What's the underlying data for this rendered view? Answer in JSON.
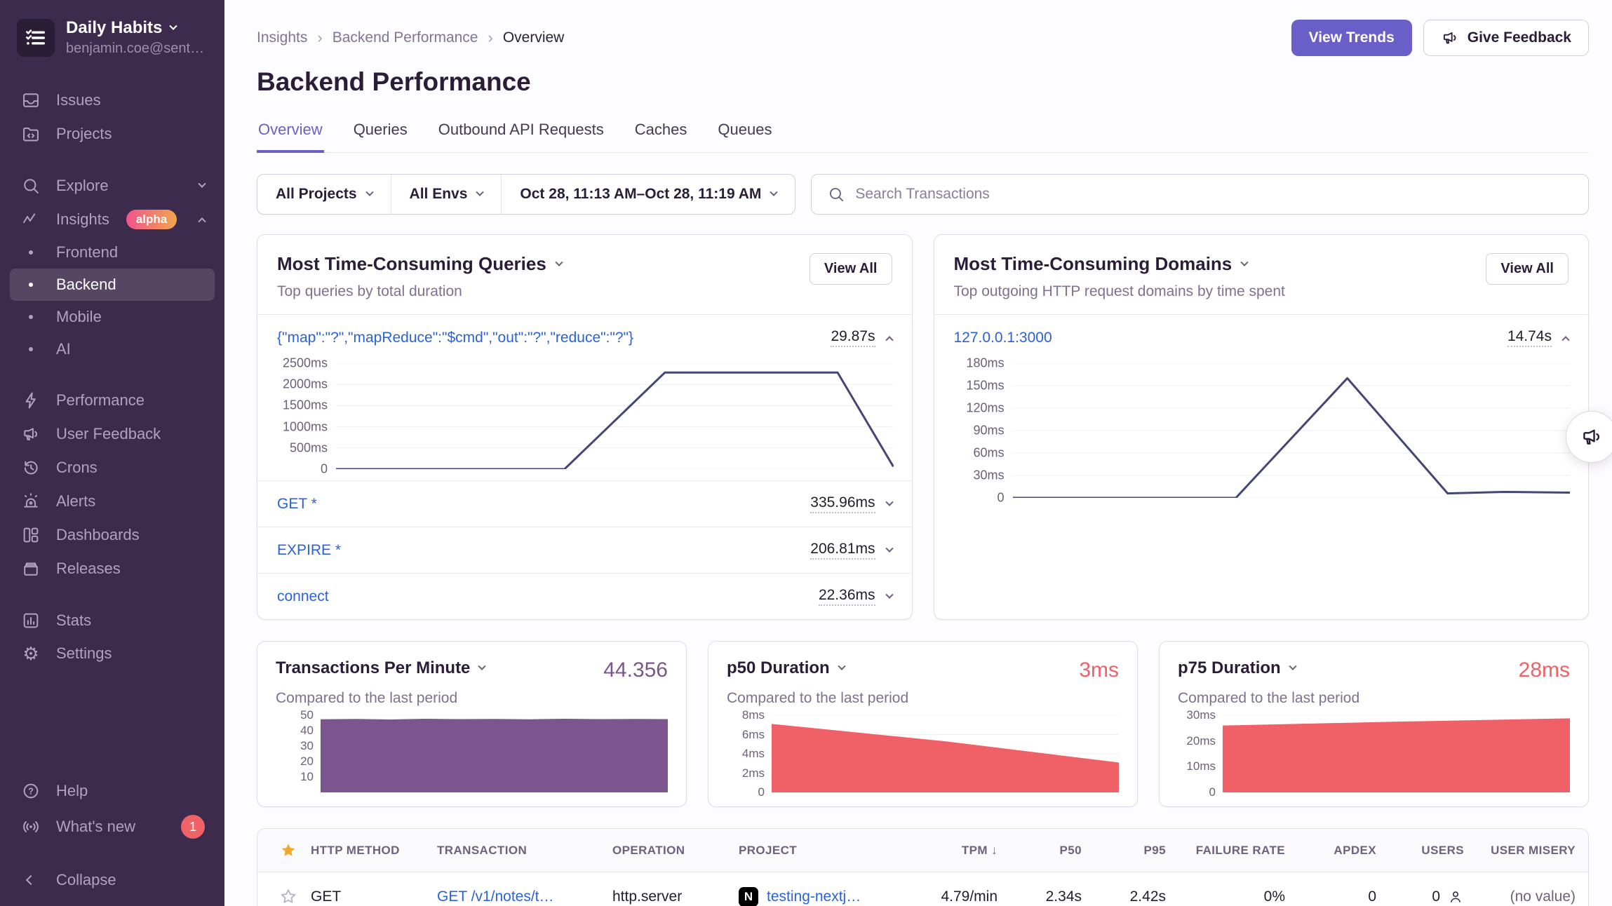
{
  "sidebar": {
    "org": {
      "name": "Daily Habits",
      "email": "benjamin.coe@sent…"
    },
    "items": [
      {
        "label": "Issues"
      },
      {
        "label": "Projects"
      },
      {
        "label": "Explore"
      },
      {
        "label": "Insights",
        "badge": "alpha"
      },
      {
        "label": "Frontend"
      },
      {
        "label": "Backend"
      },
      {
        "label": "Mobile"
      },
      {
        "label": "AI"
      },
      {
        "label": "Performance"
      },
      {
        "label": "User Feedback"
      },
      {
        "label": "Crons"
      },
      {
        "label": "Alerts"
      },
      {
        "label": "Dashboards"
      },
      {
        "label": "Releases"
      },
      {
        "label": "Stats"
      },
      {
        "label": "Settings"
      }
    ],
    "footer": {
      "help": "Help",
      "whats_new": "What's new",
      "whats_new_count": "1",
      "collapse": "Collapse"
    }
  },
  "header": {
    "breadcrumbs": [
      "Insights",
      "Backend Performance",
      "Overview"
    ],
    "title": "Backend Performance",
    "view_trends_label": "View Trends",
    "give_feedback_label": "Give Feedback"
  },
  "tabs": [
    {
      "label": "Overview"
    },
    {
      "label": "Queries"
    },
    {
      "label": "Outbound API Requests"
    },
    {
      "label": "Caches"
    },
    {
      "label": "Queues"
    }
  ],
  "filters": {
    "projects": "All Projects",
    "envs": "All Envs",
    "date_range": "Oct 28, 11:13 AM–Oct 28, 11:19 AM",
    "search_placeholder": "Search Transactions"
  },
  "queries_panel": {
    "title": "Most Time-Consuming Queries",
    "subtitle": "Top queries by total duration",
    "view_all": "View All",
    "rows": [
      {
        "label": "{\"map\":\"?\",\"mapReduce\":\"$cmd\",\"out\":\"?\",\"reduce\":\"?\"}",
        "value": "29.87s"
      },
      {
        "label": "GET *",
        "value": "335.96ms"
      },
      {
        "label": "EXPIRE *",
        "value": "206.81ms"
      },
      {
        "label": "connect",
        "value": "22.36ms"
      }
    ]
  },
  "domains_panel": {
    "title": "Most Time-Consuming Domains",
    "subtitle": "Top outgoing HTTP request domains by time spent",
    "view_all": "View All",
    "rows": [
      {
        "label": "127.0.0.1:3000",
        "value": "14.74s"
      }
    ]
  },
  "metric_cards": [
    {
      "title": "Transactions Per Minute",
      "value": "44.356",
      "subtitle": "Compared to the last period",
      "value_color": "#7c548e"
    },
    {
      "title": "p50 Duration",
      "value": "3ms",
      "subtitle": "Compared to the last period",
      "value_color": "#ef6067"
    },
    {
      "title": "p75 Duration",
      "value": "28ms",
      "subtitle": "Compared to the last period",
      "value_color": "#ef6067"
    }
  ],
  "table": {
    "columns": [
      {
        "label": "HTTP METHOD"
      },
      {
        "label": "TRANSACTION"
      },
      {
        "label": "OPERATION"
      },
      {
        "label": "PROJECT"
      },
      {
        "label": "TPM",
        "sort": "desc"
      },
      {
        "label": "P50"
      },
      {
        "label": "P95"
      },
      {
        "label": "FAILURE RATE"
      },
      {
        "label": "APDEX"
      },
      {
        "label": "USERS"
      },
      {
        "label": "USER MISERY"
      }
    ],
    "row": {
      "method": "GET",
      "transaction": "GET /v1/notes/t…",
      "operation": "http.server",
      "project": "testing-nextj…",
      "project_logo": "N",
      "tpm": "4.79/min",
      "p50": "2.34s",
      "p95": "2.42s",
      "failure_rate": "0%",
      "apdex": "0",
      "users": "0",
      "user_misery": "(no value)"
    }
  },
  "colors": {
    "accent_purple": "#6a5fc8",
    "chart_line": "#444674",
    "tpm_fill": "#7c548e",
    "duration_fill": "#ef6067",
    "alpha_badge_gradient": [
      "#f1538c",
      "#f2a64b"
    ],
    "notification_red": "#ef6266",
    "link_blue": "#2b62d9"
  },
  "chart_data": [
    {
      "id": "queries-selected-duration",
      "type": "line",
      "title": "Most Time-Consuming Queries — selected query duration over time",
      "ylim": [
        0,
        2500
      ],
      "yticks": [
        {
          "value": 0,
          "label": "0"
        },
        {
          "value": 500,
          "label": "500ms"
        },
        {
          "value": 1000,
          "label": "1000ms"
        },
        {
          "value": 1500,
          "label": "1500ms"
        },
        {
          "value": 2000,
          "label": "2000ms"
        },
        {
          "value": 2500,
          "label": "2500ms"
        }
      ],
      "x": [
        0,
        0.41,
        0.59,
        0.9,
        1.0
      ],
      "values": [
        0,
        0,
        2280,
        2280,
        60
      ],
      "color": "#444674",
      "grid": true
    },
    {
      "id": "domains-selected-duration",
      "type": "line",
      "title": "Most Time-Consuming Domains — 127.0.0.1:3000 time spent over time",
      "ylim": [
        0,
        180
      ],
      "yticks": [
        {
          "value": 0,
          "label": "0"
        },
        {
          "value": 30,
          "label": "30ms"
        },
        {
          "value": 60,
          "label": "60ms"
        },
        {
          "value": 90,
          "label": "90ms"
        },
        {
          "value": 120,
          "label": "120ms"
        },
        {
          "value": 150,
          "label": "150ms"
        },
        {
          "value": 180,
          "label": "180ms"
        }
      ],
      "x": [
        0,
        0.4,
        0.6,
        0.78,
        0.88,
        1.0
      ],
      "values": [
        0,
        0,
        160,
        6,
        8,
        7
      ],
      "color": "#444674",
      "grid": true
    },
    {
      "id": "transactions-per-minute",
      "type": "area",
      "title": "Transactions Per Minute",
      "ylim": [
        0,
        50
      ],
      "yticks": [
        {
          "value": 10,
          "label": "10"
        },
        {
          "value": 20,
          "label": "20"
        },
        {
          "value": 30,
          "label": "30"
        },
        {
          "value": 40,
          "label": "40"
        },
        {
          "value": 50,
          "label": "50"
        }
      ],
      "x": [
        0,
        0.1,
        0.2,
        0.3,
        0.4,
        0.5,
        0.6,
        0.7,
        0.8,
        0.9,
        1.0
      ],
      "values": [
        47.4,
        47.6,
        47.3,
        47.7,
        47.5,
        47.6,
        47.4,
        47.7,
        47.5,
        47.6,
        47.5
      ],
      "color": "#7c548e",
      "grid": true
    },
    {
      "id": "p50-duration",
      "type": "area",
      "title": "p50 Duration",
      "ylim": [
        0,
        8
      ],
      "yticks": [
        {
          "value": 0,
          "label": "0"
        },
        {
          "value": 2,
          "label": "2ms"
        },
        {
          "value": 4,
          "label": "4ms"
        },
        {
          "value": 6,
          "label": "6ms"
        },
        {
          "value": 8,
          "label": "8ms"
        }
      ],
      "x": [
        0,
        0.25,
        0.5,
        0.75,
        1.0
      ],
      "values": [
        7.1,
        6.2,
        5.3,
        4.2,
        3.1
      ],
      "color": "#ef6067",
      "grid": true
    },
    {
      "id": "p75-duration",
      "type": "area",
      "title": "p75 Duration",
      "ylim": [
        0,
        30
      ],
      "yticks": [
        {
          "value": 0,
          "label": "0"
        },
        {
          "value": 10,
          "label": "10ms"
        },
        {
          "value": 20,
          "label": "20ms"
        },
        {
          "value": 30,
          "label": "30ms"
        }
      ],
      "x": [
        0,
        0.5,
        1.0
      ],
      "values": [
        26,
        27.5,
        28.8
      ],
      "color": "#ef6067",
      "grid": true
    }
  ]
}
